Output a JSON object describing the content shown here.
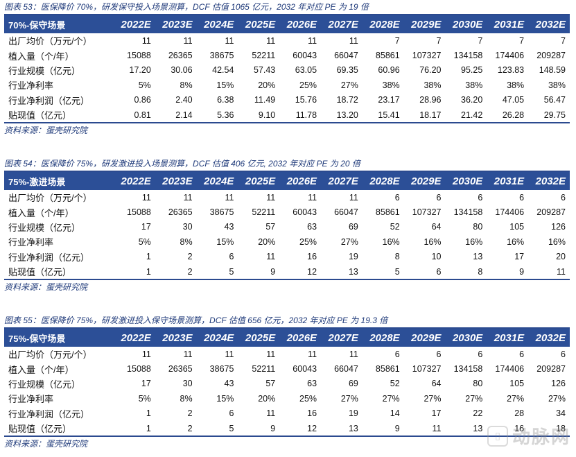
{
  "tables": [
    {
      "caption": "图表 53：医保降价 70%，研发保守投入场景测算，DCF 估值 1065 亿元，2032 年对应 PE 为 19 倍",
      "header_label": "70%-保守场景",
      "years": [
        "2022E",
        "2023E",
        "2024E",
        "2025E",
        "2026E",
        "2027E",
        "2028E",
        "2029E",
        "2030E",
        "2031E",
        "2032E"
      ],
      "rows": [
        {
          "label": "出厂均价（万元/个）",
          "values": [
            "11",
            "11",
            "11",
            "11",
            "11",
            "11",
            "7",
            "7",
            "7",
            "7",
            "7"
          ]
        },
        {
          "label": "植入量（个/年）",
          "values": [
            "15088",
            "26365",
            "38675",
            "52211",
            "60043",
            "66047",
            "85861",
            "107327",
            "134158",
            "174406",
            "209287"
          ]
        },
        {
          "label": "行业规模（亿元）",
          "values": [
            "17.20",
            "30.06",
            "42.54",
            "57.43",
            "63.05",
            "69.35",
            "60.96",
            "76.20",
            "95.25",
            "123.83",
            "148.59"
          ]
        },
        {
          "label": "行业净利率",
          "values": [
            "5%",
            "8%",
            "15%",
            "20%",
            "25%",
            "27%",
            "38%",
            "38%",
            "38%",
            "38%",
            "38%"
          ]
        },
        {
          "label": "行业净利润（亿元）",
          "values": [
            "0.86",
            "2.40",
            "6.38",
            "11.49",
            "15.76",
            "18.72",
            "23.17",
            "28.96",
            "36.20",
            "47.05",
            "56.47"
          ]
        },
        {
          "label": "贴现值（亿元）",
          "values": [
            "0.81",
            "2.14",
            "5.36",
            "9.10",
            "11.78",
            "13.20",
            "15.41",
            "18.17",
            "21.42",
            "26.28",
            "29.75"
          ]
        }
      ],
      "source": "资料来源：蛋壳研究院"
    },
    {
      "caption": "图表 54：医保降价 75%，研发激进投入场景测算，DCF 估值 406 亿元, 2032 年对应 PE 为 20 倍",
      "header_label": "75%-激进场景",
      "years": [
        "2022E",
        "2023E",
        "2024E",
        "2025E",
        "2026E",
        "2027E",
        "2028E",
        "2029E",
        "2030E",
        "2031E",
        "2032E"
      ],
      "rows": [
        {
          "label": "出厂均价（万元/个）",
          "values": [
            "11",
            "11",
            "11",
            "11",
            "11",
            "11",
            "6",
            "6",
            "6",
            "6",
            "6"
          ]
        },
        {
          "label": "植入量（个/年）",
          "values": [
            "15088",
            "26365",
            "38675",
            "52211",
            "60043",
            "66047",
            "85861",
            "107327",
            "134158",
            "174406",
            "209287"
          ]
        },
        {
          "label": "行业规模（亿元）",
          "values": [
            "17",
            "30",
            "43",
            "57",
            "63",
            "69",
            "52",
            "64",
            "80",
            "105",
            "126"
          ]
        },
        {
          "label": "行业净利率",
          "values": [
            "5%",
            "8%",
            "15%",
            "20%",
            "25%",
            "27%",
            "16%",
            "16%",
            "16%",
            "16%",
            "16%"
          ]
        },
        {
          "label": "行业净利润（亿元）",
          "values": [
            "1",
            "2",
            "6",
            "11",
            "16",
            "19",
            "8",
            "10",
            "13",
            "17",
            "20"
          ]
        },
        {
          "label": "贴现值（亿元）",
          "values": [
            "1",
            "2",
            "5",
            "9",
            "12",
            "13",
            "5",
            "6",
            "8",
            "9",
            "11"
          ]
        }
      ],
      "source": "资料来源：蛋壳研究院"
    },
    {
      "caption": "图表 55：医保降价 75%，研发激进投入保守场景测算，DCF 估值 656 亿元，2032 年对应 PE 为 19.3 倍",
      "header_label": "75%-保守场景",
      "years": [
        "2022E",
        "2023E",
        "2024E",
        "2025E",
        "2026E",
        "2027E",
        "2028E",
        "2029E",
        "2030E",
        "2031E",
        "2032E"
      ],
      "rows": [
        {
          "label": "出厂均价（万元/个）",
          "values": [
            "11",
            "11",
            "11",
            "11",
            "11",
            "11",
            "6",
            "6",
            "6",
            "6",
            "6"
          ]
        },
        {
          "label": "植入量（个/年）",
          "values": [
            "15088",
            "26365",
            "38675",
            "52211",
            "60043",
            "66047",
            "85861",
            "107327",
            "134158",
            "174406",
            "209287"
          ]
        },
        {
          "label": "行业规模（亿元）",
          "values": [
            "17",
            "30",
            "43",
            "57",
            "63",
            "69",
            "52",
            "64",
            "80",
            "105",
            "126"
          ]
        },
        {
          "label": "行业净利率",
          "values": [
            "5%",
            "8%",
            "15%",
            "20%",
            "25%",
            "27%",
            "27%",
            "27%",
            "27%",
            "27%",
            "27%"
          ]
        },
        {
          "label": "行业净利润（亿元）",
          "values": [
            "1",
            "2",
            "6",
            "11",
            "16",
            "19",
            "14",
            "17",
            "22",
            "28",
            "34"
          ]
        },
        {
          "label": "贴现值（亿元）",
          "values": [
            "1",
            "2",
            "5",
            "9",
            "12",
            "13",
            "9",
            "11",
            "13",
            "16",
            "18"
          ]
        }
      ],
      "source": "资料来源：蛋壳研究院"
    }
  ],
  "watermark": {
    "logo_glyph": "动",
    "text": "动脉网"
  }
}
